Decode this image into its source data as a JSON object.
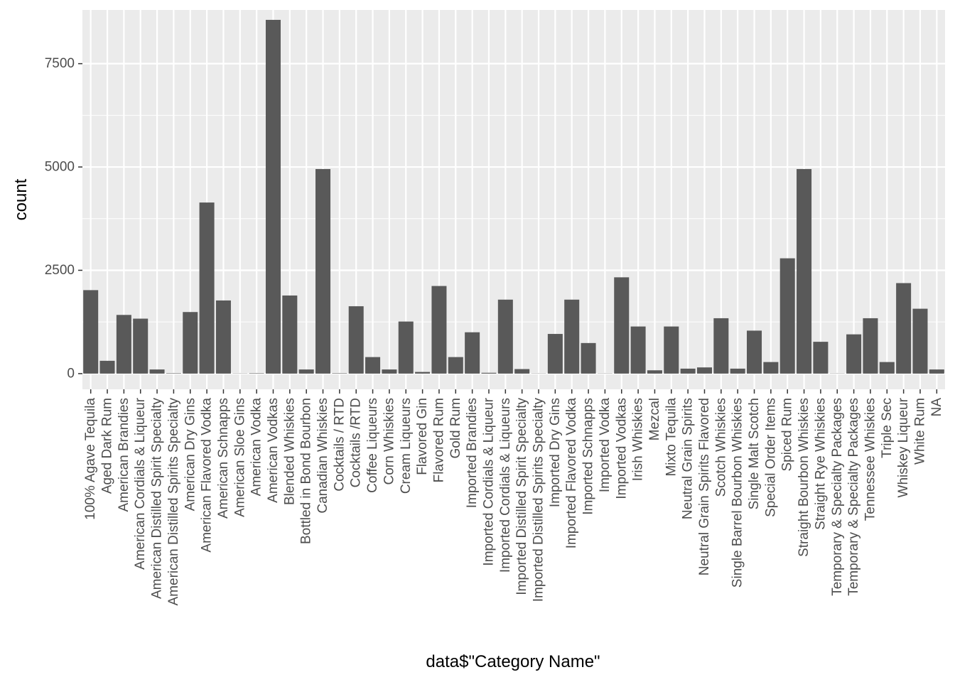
{
  "chart_data": {
    "type": "bar",
    "title": "",
    "xlabel": "data$\"Category Name\"",
    "ylabel": "count",
    "ylim": [
      -380,
      8800
    ],
    "yticks": [
      0,
      2500,
      5000,
      7500
    ],
    "ytick_labels": [
      "0",
      "2500",
      "5000",
      "7500"
    ],
    "grid": true,
    "legend": "none",
    "colors": {
      "panel": "#ebebeb",
      "grid": "#ffffff",
      "bar": "#595959",
      "tick": "#333333"
    },
    "categories": [
      "100% Agave Tequila",
      "Aged Dark Rum",
      "American Brandies",
      "American Cordials & Liqueur",
      "American Distilled Spirit Specialty",
      "American Distilled Spirits Specialty",
      "American Dry Gins",
      "American Flavored Vodka",
      "American Schnapps",
      "American Sloe Gins",
      "American Vodka",
      "American Vodkas",
      "Blended Whiskies",
      "Bottled in Bond Bourbon",
      "Canadian Whiskies",
      "Cocktails / RTD",
      "Cocktails /RTD",
      "Coffee Liqueurs",
      "Corn Whiskies",
      "Cream Liqueurs",
      "Flavored Gin",
      "Flavored Rum",
      "Gold Rum",
      "Imported Brandies",
      "Imported Cordials & Liqueur",
      "Imported Cordials & Liqueurs",
      "Imported Distilled Spirit Specialty",
      "Imported Distilled Spirits Specialty",
      "Imported Dry Gins",
      "Imported Flavored Vodka",
      "Imported Schnapps",
      "Imported Vodka",
      "Imported Vodkas",
      "Irish Whiskies",
      "Mezcal",
      "Mixto Tequila",
      "Neutral Grain Spirits",
      "Neutral Grain Spirits Flavored",
      "Scotch Whiskies",
      "Single Barrel Bourbon Whiskies",
      "Single Malt Scotch",
      "Special Order Items",
      "Spiced Rum",
      "Straight Bourbon Whiskies",
      "Straight Rye Whiskies",
      "Temporary &  Specialty Packages",
      "Temporary & Specialty Packages",
      "Tennessee Whiskies",
      "Triple Sec",
      "Whiskey Liqueur",
      "White Rum",
      "NA"
    ],
    "values": [
      2020,
      310,
      1420,
      1330,
      100,
      10,
      1490,
      4140,
      1770,
      5,
      10,
      8560,
      1890,
      100,
      4950,
      10,
      1630,
      400,
      100,
      1260,
      40,
      2120,
      400,
      1000,
      20,
      1790,
      110,
      5,
      960,
      1790,
      740,
      5,
      2330,
      1140,
      80,
      1140,
      120,
      150,
      1340,
      120,
      1040,
      280,
      2790,
      4950,
      770,
      5,
      950,
      1340,
      280,
      2190,
      1570,
      100
    ]
  }
}
